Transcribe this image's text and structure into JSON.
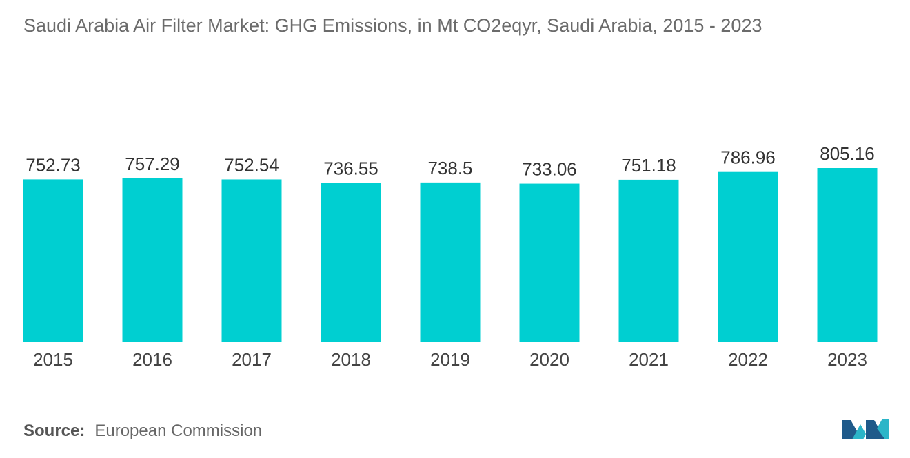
{
  "chart_data": {
    "type": "bar",
    "title": "Saudi Arabia Air Filter Market: GHG Emissions, in Mt CO2eqyr, Saudi Arabia, 2015 - 2023",
    "categories": [
      "2015",
      "2016",
      "2017",
      "2018",
      "2019",
      "2020",
      "2021",
      "2022",
      "2023"
    ],
    "values": [
      752.73,
      757.29,
      752.54,
      736.55,
      738.5,
      733.06,
      751.18,
      786.96,
      805.16
    ],
    "value_labels": [
      "752.73",
      "757.29",
      "752.54",
      "736.55",
      "738.5",
      "733.06",
      "751.18",
      "786.96",
      "805.16"
    ],
    "xlabel": "",
    "ylabel": "",
    "grid": false,
    "legend": "none",
    "bar_color": "#00cfd1"
  },
  "source": {
    "label": "Source:",
    "value": "European Commission"
  },
  "logo": {
    "icon": "mordor-intelligence-logo-icon",
    "colors": [
      "#1f5a8a",
      "#2bb5c8"
    ]
  }
}
